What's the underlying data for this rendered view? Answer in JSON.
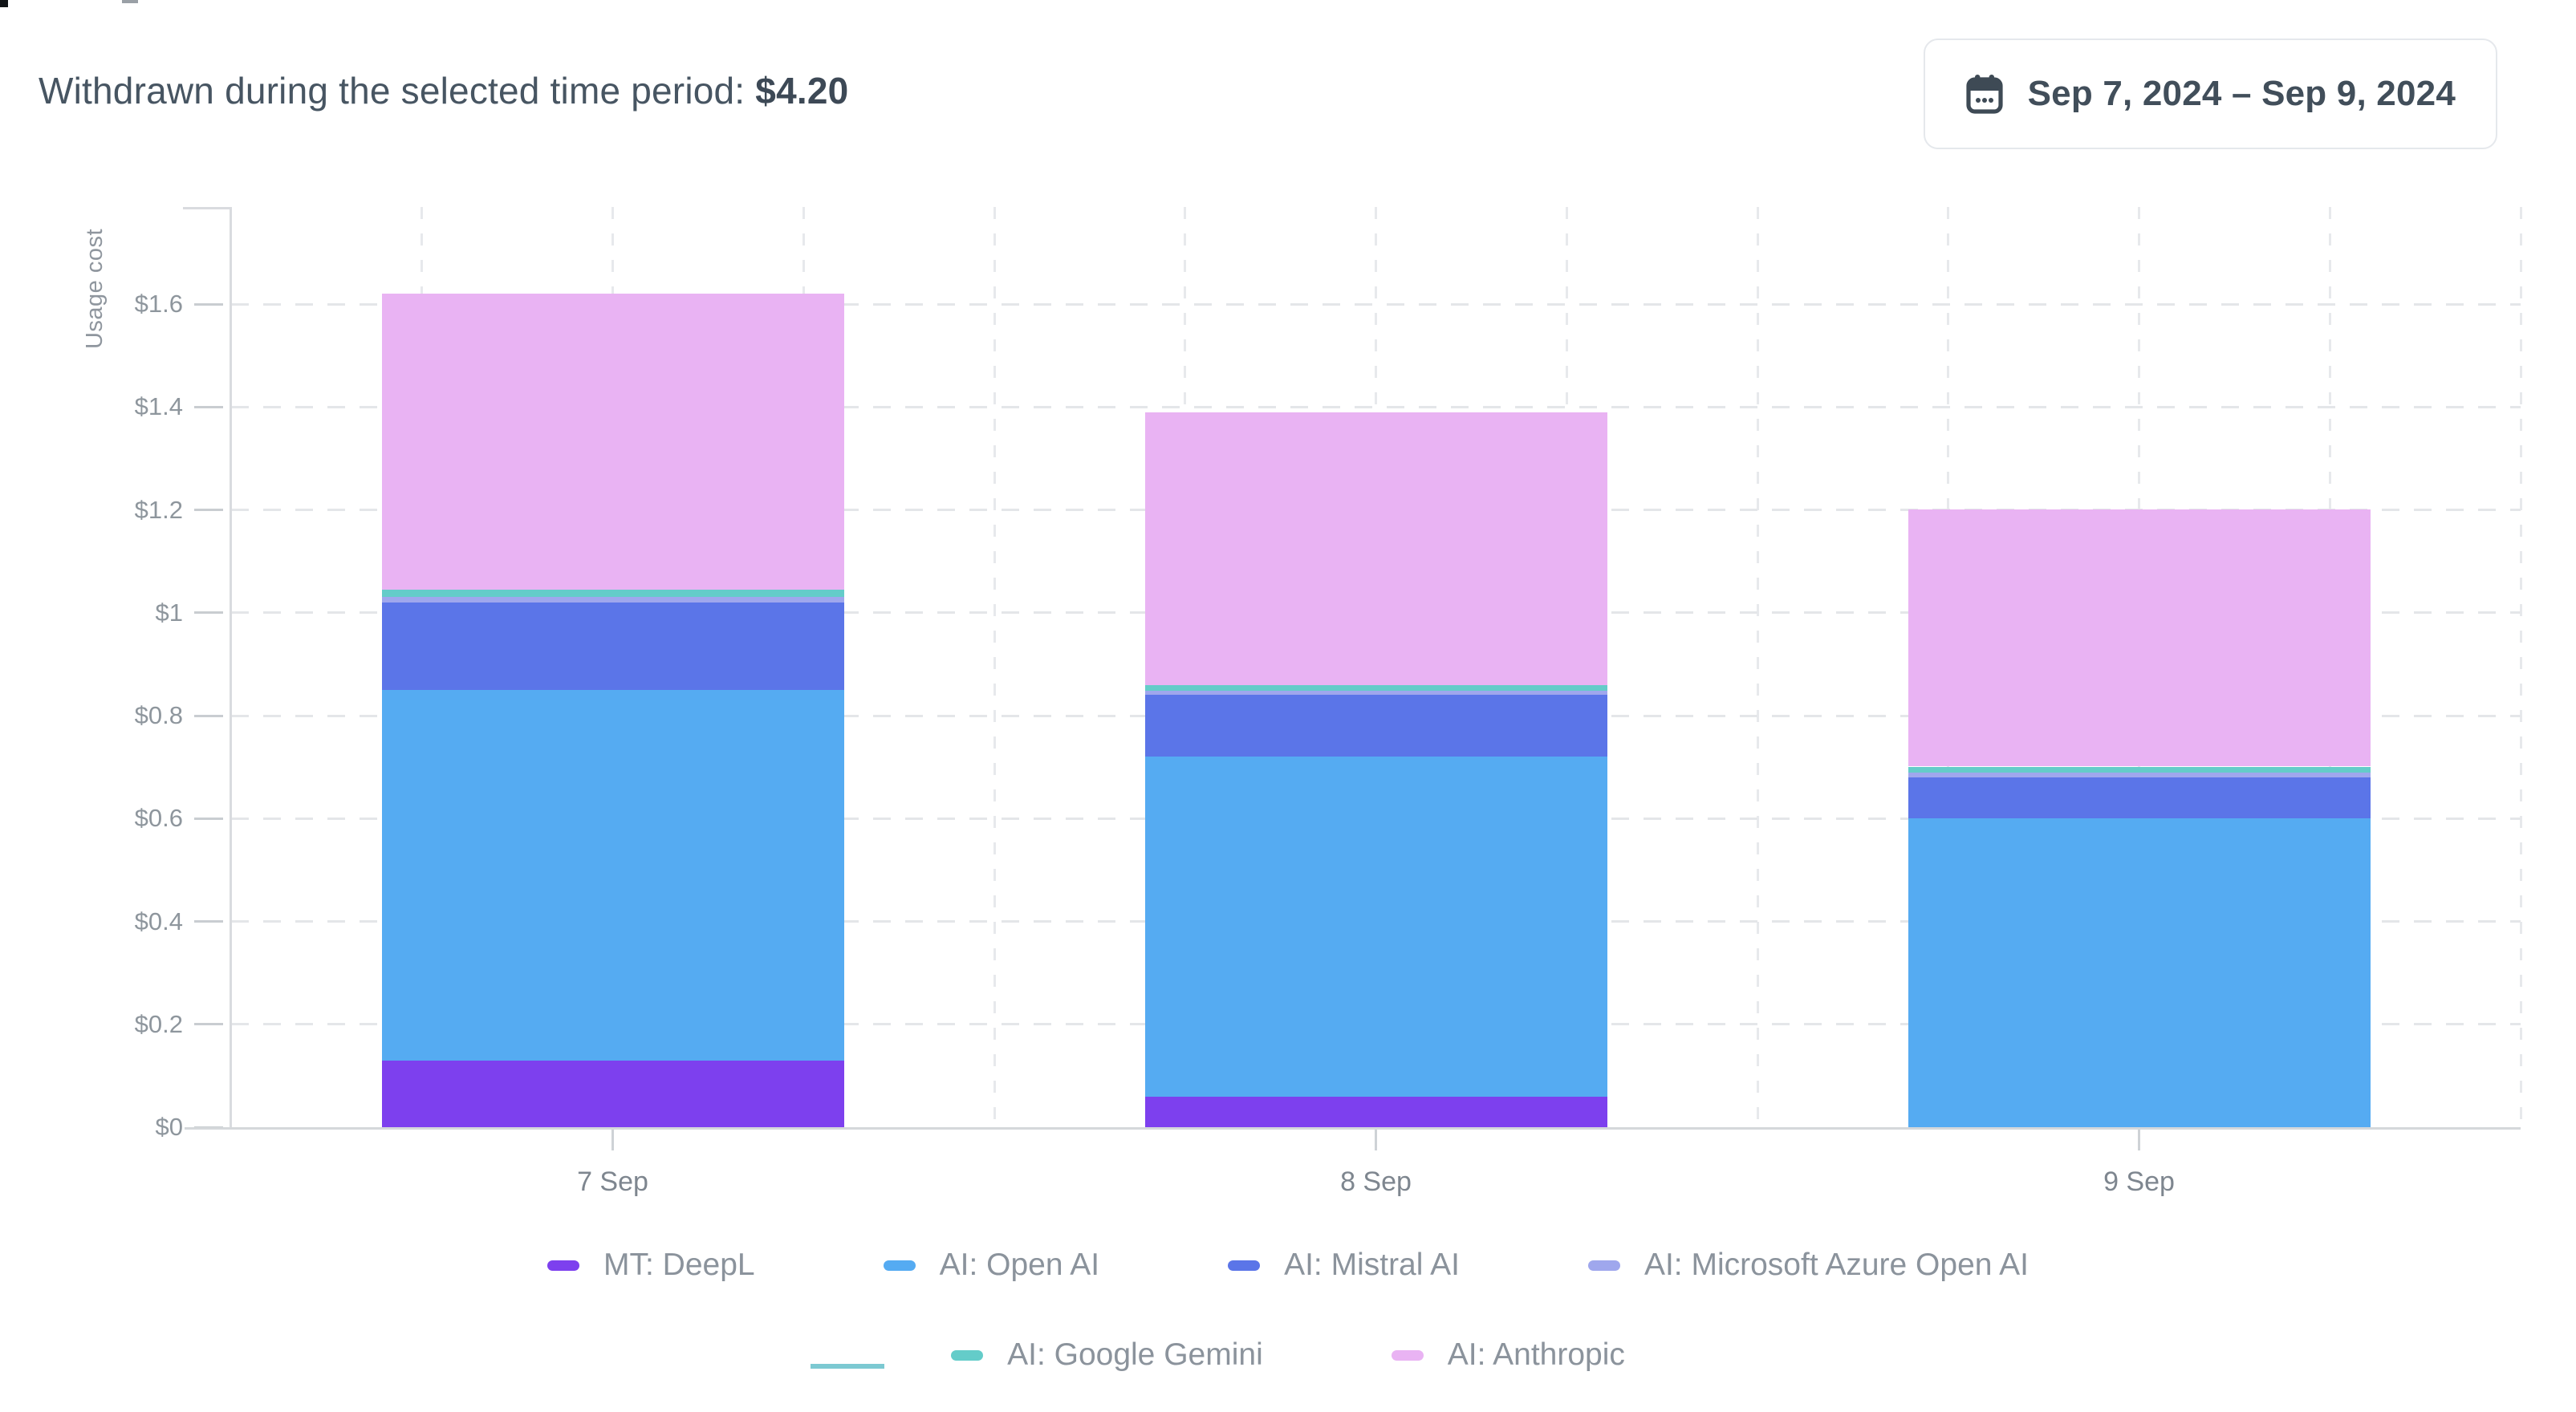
{
  "header": {
    "withdrawn_label": "Withdrawn during the selected time period:",
    "withdrawn_amount": "$4.20",
    "date_range": "Sep 7, 2024 – Sep 9, 2024",
    "calendar_icon": "calendar-icon"
  },
  "chart_data": {
    "type": "bar",
    "stacked": true,
    "title": "",
    "ylabel": "Usage cost",
    "xlabel": "",
    "categories": [
      "7 Sep",
      "8 Sep",
      "9 Sep"
    ],
    "series": [
      {
        "name": "MT: DeepL",
        "color": "#7d40ee",
        "values": [
          0.13,
          0.06,
          0
        ]
      },
      {
        "name": "AI: Open AI",
        "color": "#55abf2",
        "values": [
          0.72,
          0.66,
          0.6
        ]
      },
      {
        "name": "AI: Mistral AI",
        "color": "#5b75e8",
        "values": [
          0.17,
          0.12,
          0.08
        ]
      },
      {
        "name": "AI: Microsoft Azure Open AI",
        "color": "#9fa7ed",
        "values": [
          0.011,
          0.009,
          0.009
        ]
      },
      {
        "name": "AI: Google Gemini",
        "color": "#64ccc9",
        "values": [
          0.014,
          0.011,
          0.012
        ]
      },
      {
        "name": "AI: Anthropic",
        "color": "#e9b3f3",
        "values": [
          0.575,
          0.53,
          0.5
        ]
      }
    ],
    "y_ticks": [
      "$0",
      "$0.2",
      "$0.4",
      "$0.6",
      "$0.8",
      "$1",
      "$1.2",
      "$1.4",
      "$1.6"
    ],
    "y_tick_values": [
      0,
      0.2,
      0.4,
      0.6,
      0.8,
      1,
      1.2,
      1.4,
      1.6
    ],
    "ylim": [
      0,
      1.79
    ],
    "grid": "dashed-both",
    "legend_position": "bottom"
  }
}
